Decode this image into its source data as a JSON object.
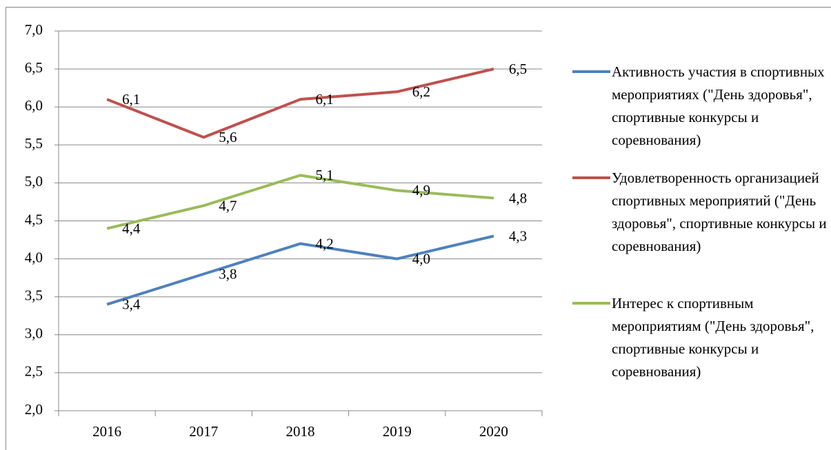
{
  "chart_data": {
    "type": "line",
    "categories": [
      "2016",
      "2017",
      "2018",
      "2019",
      "2020"
    ],
    "series": [
      {
        "name": "Активность участия в спортивных мероприятиях (\"День здоровья\", спортивные конкурсы и соревнования)",
        "color": "#4f81bd",
        "values": [
          3.4,
          3.8,
          4.2,
          4.0,
          4.3
        ],
        "value_labels": [
          "3,4",
          "3,8",
          "4,2",
          "4,0",
          "4,3"
        ]
      },
      {
        "name": "Удовлетворенность организацией спортивных мероприятий (\"День здоровья\", спортивные конкурсы и соревнования)",
        "color": "#c0504d",
        "values": [
          6.1,
          5.6,
          6.1,
          6.2,
          6.5
        ],
        "value_labels": [
          "6,1",
          "5,6",
          "6,1",
          "6,2",
          "6,5"
        ]
      },
      {
        "name": "Интерес к спортивным мероприятиям (\"День здоровья\", спортивные конкурсы и соревнования)",
        "color": "#9bbb59",
        "values": [
          4.4,
          4.7,
          5.1,
          4.9,
          4.8
        ],
        "value_labels": [
          "4,4",
          "4,7",
          "5,1",
          "4,9",
          "4,8"
        ]
      }
    ],
    "ylim": [
      2.0,
      7.0
    ],
    "yticks": [
      {
        "value": 2.0,
        "label": "2,0"
      },
      {
        "value": 2.5,
        "label": "2,5"
      },
      {
        "value": 3.0,
        "label": "3,0"
      },
      {
        "value": 3.5,
        "label": "3,5"
      },
      {
        "value": 4.0,
        "label": "4,0"
      },
      {
        "value": 4.5,
        "label": "4,5"
      },
      {
        "value": 5.0,
        "label": "5,0"
      },
      {
        "value": 5.5,
        "label": "5,5"
      },
      {
        "value": 6.0,
        "label": "6,0"
      },
      {
        "value": 6.5,
        "label": "6,5"
      },
      {
        "value": 7.0,
        "label": "7,0"
      }
    ],
    "grid": true,
    "legend": "right"
  }
}
